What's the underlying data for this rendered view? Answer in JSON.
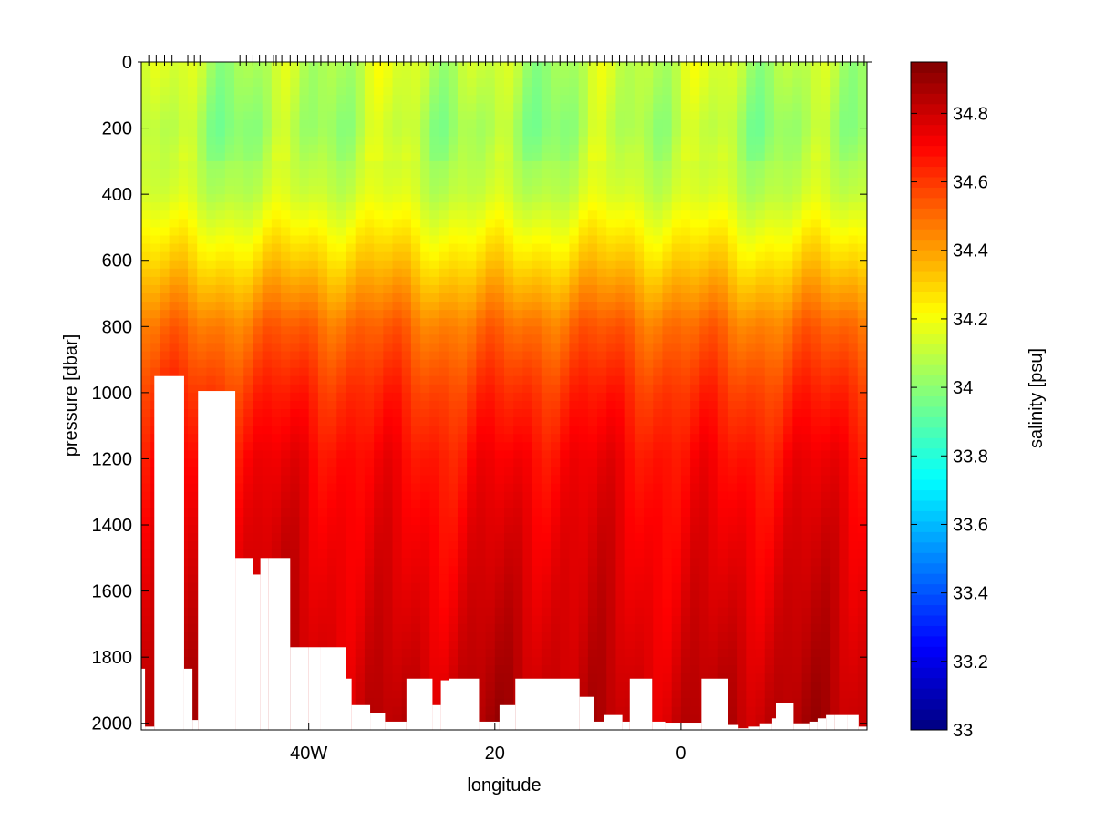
{
  "chart_data": {
    "type": "heatmap",
    "title": "",
    "xlabel": "longitude",
    "ylabel": "pressure [dbar]",
    "colorbar_label": "salinity [psu]",
    "colormap": "jet",
    "xlim": [
      -58,
      20
    ],
    "ylim": [
      2020,
      0
    ],
    "x_ticks": [
      {
        "value": -40,
        "label": "40W"
      },
      {
        "value": -20,
        "label": "20"
      },
      {
        "value": 0,
        "label": "0"
      }
    ],
    "y_ticks": [
      {
        "value": 0,
        "label": "0"
      },
      {
        "value": 200,
        "label": "200"
      },
      {
        "value": 400,
        "label": "400"
      },
      {
        "value": 600,
        "label": "600"
      },
      {
        "value": 800,
        "label": "800"
      },
      {
        "value": 1000,
        "label": "1000"
      },
      {
        "value": 1200,
        "label": "1200"
      },
      {
        "value": 1400,
        "label": "1400"
      },
      {
        "value": 1600,
        "label": "1600"
      },
      {
        "value": 1800,
        "label": "1800"
      },
      {
        "value": 2000,
        "label": "2000"
      }
    ],
    "clim": [
      33,
      34.95
    ],
    "colorbar_ticks": [
      {
        "value": 33,
        "label": "33"
      },
      {
        "value": 33.2,
        "label": "33.2"
      },
      {
        "value": 33.4,
        "label": "33.4"
      },
      {
        "value": 33.6,
        "label": "33.6"
      },
      {
        "value": 33.8,
        "label": "33.8"
      },
      {
        "value": 34,
        "label": "34"
      },
      {
        "value": 34.2,
        "label": "34.2"
      },
      {
        "value": 34.4,
        "label": "34.4"
      },
      {
        "value": 34.6,
        "label": "34.6"
      },
      {
        "value": 34.8,
        "label": "34.8"
      }
    ],
    "station_longitudes": [
      -57.2,
      -56.4,
      -55.5,
      -54.7,
      -53.0,
      -52.3,
      -51.7,
      -47.4,
      -46.7,
      -46.0,
      -45.3,
      -44.6,
      -43.8,
      -43.5,
      -42.9,
      -42.0,
      -41.2,
      -40.3,
      -39.5,
      -38.7,
      -37.9,
      -37.1,
      -36.3,
      -35.5,
      -34.7,
      -33.9,
      -33.1,
      -32.3,
      -31.4,
      -30.6,
      -29.8,
      -29.0,
      -28.2,
      -27.4,
      -26.6,
      -25.8,
      -25.0,
      -24.2,
      -23.4,
      -22.6,
      -21.8,
      -21.0,
      -20.2,
      -19.4,
      -18.6,
      -17.8,
      -17.0,
      -16.2,
      -15.4,
      -14.6,
      -13.8,
      -13.0,
      -12.2,
      -11.4,
      -10.6,
      -9.8,
      -9.0,
      -8.2,
      -7.4,
      -6.6,
      -5.8,
      -5.0,
      -4.2,
      -3.4,
      -2.6,
      -1.8,
      -1.0,
      -0.2,
      0.6,
      1.4,
      2.2,
      3.0,
      3.8,
      4.6,
      5.4,
      6.2,
      7.0,
      7.8,
      8.6,
      9.4,
      10.2,
      11.0,
      11.8,
      12.6,
      13.4,
      14.2,
      15.0,
      15.8,
      16.6,
      17.4,
      18.2,
      19.0,
      19.7
    ],
    "profile": [
      {
        "pressure": 0,
        "salinity": 34.1
      },
      {
        "pressure": 200,
        "salinity": 34.05
      },
      {
        "pressure": 400,
        "salinity": 34.12
      },
      {
        "pressure": 600,
        "salinity": 34.3
      },
      {
        "pressure": 800,
        "salinity": 34.5
      },
      {
        "pressure": 1000,
        "salinity": 34.62
      },
      {
        "pressure": 1200,
        "salinity": 34.7
      },
      {
        "pressure": 1400,
        "salinity": 34.74
      },
      {
        "pressure": 1600,
        "salinity": 34.77
      },
      {
        "pressure": 1800,
        "salinity": 34.8
      },
      {
        "pressure": 2000,
        "salinity": 34.83
      }
    ],
    "bottom_depths": [
      {
        "lon_start": -58,
        "lon_end": -57.6,
        "pressure": 1835
      },
      {
        "lon_start": -57.6,
        "lon_end": -56.6,
        "pressure": 2010
      },
      {
        "lon_start": -56.6,
        "lon_end": -53.4,
        "pressure": 950
      },
      {
        "lon_start": -53.4,
        "lon_end": -52.5,
        "pressure": 1835
      },
      {
        "lon_start": -52.5,
        "lon_end": -51.9,
        "pressure": 1990
      },
      {
        "lon_start": -51.9,
        "lon_end": -47.9,
        "pressure": 995
      },
      {
        "lon_start": -47.9,
        "lon_end": -46.0,
        "pressure": 1500
      },
      {
        "lon_start": -46.0,
        "lon_end": -45.2,
        "pressure": 1550
      },
      {
        "lon_start": -45.2,
        "lon_end": -44.3,
        "pressure": 1500
      },
      {
        "lon_start": -44.3,
        "lon_end": -42.0,
        "pressure": 1500
      },
      {
        "lon_start": -42.0,
        "lon_end": -40.0,
        "pressure": 1770
      },
      {
        "lon_start": -40.0,
        "lon_end": -38.7,
        "pressure": 1770
      },
      {
        "lon_start": -38.7,
        "lon_end": -36.0,
        "pressure": 1770
      },
      {
        "lon_start": -36.0,
        "lon_end": -35.4,
        "pressure": 1865
      },
      {
        "lon_start": -35.4,
        "lon_end": -33.4,
        "pressure": 1945
      },
      {
        "lon_start": -33.4,
        "lon_end": -31.8,
        "pressure": 1970
      },
      {
        "lon_start": -31.8,
        "lon_end": -29.5,
        "pressure": 1995
      },
      {
        "lon_start": -29.5,
        "lon_end": -26.7,
        "pressure": 1865
      },
      {
        "lon_start": -26.7,
        "lon_end": -25.8,
        "pressure": 1945
      },
      {
        "lon_start": -25.8,
        "lon_end": -24.9,
        "pressure": 1870
      },
      {
        "lon_start": -24.9,
        "lon_end": -21.7,
        "pressure": 1865
      },
      {
        "lon_start": -21.7,
        "lon_end": -19.5,
        "pressure": 1995
      },
      {
        "lon_start": -19.5,
        "lon_end": -17.8,
        "pressure": 1945
      },
      {
        "lon_start": -17.8,
        "lon_end": -10.9,
        "pressure": 1865
      },
      {
        "lon_start": -10.9,
        "lon_end": -9.3,
        "pressure": 1920
      },
      {
        "lon_start": -9.3,
        "lon_end": -8.3,
        "pressure": 1995
      },
      {
        "lon_start": -8.3,
        "lon_end": -6.3,
        "pressure": 1975
      },
      {
        "lon_start": -6.3,
        "lon_end": -5.5,
        "pressure": 1995
      },
      {
        "lon_start": -5.5,
        "lon_end": -3.1,
        "pressure": 1865
      },
      {
        "lon_start": -3.1,
        "lon_end": -1.7,
        "pressure": 1995
      },
      {
        "lon_start": -1.7,
        "lon_end": 2.2,
        "pressure": 1998
      },
      {
        "lon_start": 2.2,
        "lon_end": 5.1,
        "pressure": 1865
      },
      {
        "lon_start": 5.1,
        "lon_end": 6.2,
        "pressure": 2005
      },
      {
        "lon_start": 6.2,
        "lon_end": 7.3,
        "pressure": 2015
      },
      {
        "lon_start": 7.3,
        "lon_end": 8.5,
        "pressure": 2010
      },
      {
        "lon_start": 8.5,
        "lon_end": 9.8,
        "pressure": 2000
      },
      {
        "lon_start": 9.8,
        "lon_end": 10.2,
        "pressure": 1985
      },
      {
        "lon_start": 10.2,
        "lon_end": 12.1,
        "pressure": 1940
      },
      {
        "lon_start": 12.1,
        "lon_end": 13.8,
        "pressure": 2000
      },
      {
        "lon_start": 13.8,
        "lon_end": 14.7,
        "pressure": 1995
      },
      {
        "lon_start": 14.7,
        "lon_end": 15.6,
        "pressure": 1985
      },
      {
        "lon_start": 15.6,
        "lon_end": 16.5,
        "pressure": 1975
      },
      {
        "lon_start": 16.5,
        "lon_end": 17.9,
        "pressure": 1975
      },
      {
        "lon_start": 17.9,
        "lon_end": 19.1,
        "pressure": 1975
      },
      {
        "lon_start": 19.1,
        "lon_end": 20.0,
        "pressure": 2010
      }
    ],
    "grid": false,
    "colorbar_position": "right"
  }
}
